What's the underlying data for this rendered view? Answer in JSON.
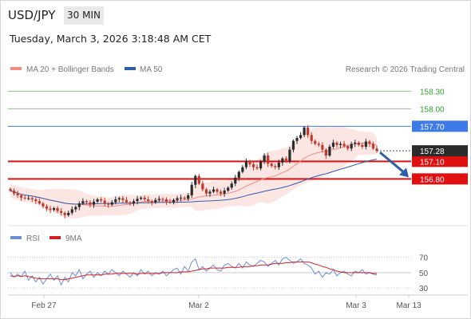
{
  "header": {
    "symbol": "USD/JPY",
    "timeframe": "30 MIN",
    "datetime": "Tuesday, March 3, 2026 3:18:48 AM CET"
  },
  "colors": {
    "ma20_bollinger": "#f28b82",
    "ma50": "#2e5ea8",
    "candle_up": "#2b2b2b",
    "candle_down": "#c0392b",
    "resistance": "#2e9e2e",
    "pivot": "#3d7ae8",
    "support": "#e01010",
    "rsi": "#6a8fd8",
    "rsi_ma": "#d62020",
    "arrow": "#2e5ea8"
  },
  "chart_data": [
    {
      "type": "candlestick",
      "legend": [
        {
          "label": "MA 20 + Bollinger Bands",
          "color": "#f28b82"
        },
        {
          "label": "MA 50",
          "color": "#2e5ea8"
        }
      ],
      "watermark": "Research © 2026 Trading Central",
      "x_ticks": [
        "Feb 27",
        "Mar 2",
        "Mar 3",
        "Mar 13"
      ],
      "ylim": [
        156.0,
        158.55
      ],
      "levels": [
        {
          "value": 158.3,
          "label": "158.30",
          "kind": "resistance"
        },
        {
          "value": 158.0,
          "label": "158.00",
          "kind": "resistance"
        },
        {
          "value": 157.7,
          "label": "157.70",
          "kind": "pivot"
        },
        {
          "value": 157.1,
          "label": "157.10",
          "kind": "support"
        },
        {
          "value": 156.8,
          "label": "156.80",
          "kind": "support"
        }
      ],
      "last_price": {
        "value": 157.28,
        "label": "157.28"
      },
      "closes": [
        156.6,
        156.55,
        156.52,
        156.48,
        156.47,
        156.47,
        156.45,
        156.42,
        156.38,
        156.33,
        156.29,
        156.27,
        156.3,
        156.25,
        156.22,
        156.18,
        156.22,
        156.28,
        156.32,
        156.38,
        156.42,
        156.4,
        156.36,
        156.41,
        156.45,
        156.43,
        156.38,
        156.36,
        156.4,
        156.45,
        156.47,
        156.44,
        156.4,
        156.38,
        156.42,
        156.46,
        156.48,
        156.45,
        156.42,
        156.4,
        156.44,
        156.46,
        156.45,
        156.41,
        156.4,
        156.44,
        156.47,
        156.48,
        156.46,
        156.52,
        156.7,
        156.85,
        156.72,
        156.62,
        156.55,
        156.58,
        156.62,
        156.58,
        156.55,
        156.6,
        156.65,
        156.72,
        156.82,
        156.92,
        157.0,
        157.1,
        157.05,
        157.0,
        156.98,
        157.1,
        157.2,
        157.06,
        157.02,
        157.0,
        157.08,
        157.15,
        157.1,
        157.3,
        157.45,
        157.5,
        157.55,
        157.68,
        157.55,
        157.45,
        157.4,
        157.38,
        157.3,
        157.2,
        157.35,
        157.42,
        157.38,
        157.4,
        157.36,
        157.32,
        157.4,
        157.42,
        157.38,
        157.35,
        157.44,
        157.4,
        157.32,
        157.28
      ]
    },
    {
      "type": "line",
      "legend": [
        {
          "label": "RSI",
          "color": "#6a8fd8"
        },
        {
          "label": "9MA",
          "color": "#d62020"
        }
      ],
      "y_ticks": [
        70,
        50,
        30
      ],
      "ylim": [
        25,
        80
      ],
      "rsi": [
        50,
        44,
        48,
        45,
        52,
        40,
        46,
        38,
        44,
        35,
        42,
        48,
        40,
        46,
        34,
        44,
        38,
        50,
        46,
        54,
        42,
        48,
        52,
        44,
        50,
        46,
        52,
        48,
        54,
        50,
        46,
        52,
        48,
        44,
        50,
        46,
        54,
        48,
        52,
        46,
        50,
        48,
        52,
        46,
        50,
        54,
        56,
        48,
        58,
        52,
        64,
        68,
        54,
        58,
        52,
        56,
        60,
        54,
        52,
        60,
        62,
        58,
        56,
        62,
        56,
        64,
        60,
        58,
        62,
        66,
        64,
        58,
        62,
        66,
        60,
        68,
        70,
        66,
        62,
        64,
        68,
        62,
        60,
        56,
        48,
        52,
        44,
        50,
        48,
        54,
        46,
        50,
        52,
        48,
        46,
        52,
        50,
        54,
        48,
        50,
        48,
        47
      ],
      "ma": [
        46,
        45,
        46,
        45,
        46,
        45,
        44,
        43,
        42,
        42,
        42,
        42,
        42,
        42,
        41,
        41,
        42,
        43,
        44,
        45,
        46,
        47,
        47,
        47,
        47,
        47,
        48,
        48,
        48,
        49,
        49,
        49,
        49,
        49,
        49,
        48,
        49,
        49,
        49,
        49,
        49,
        49,
        50,
        50,
        50,
        50,
        50,
        51,
        51,
        51,
        52,
        53,
        54,
        55,
        55,
        56,
        56,
        56,
        56,
        56,
        57,
        57,
        57,
        57,
        58,
        58,
        58,
        59,
        59,
        60,
        60,
        60,
        61,
        62,
        62,
        62,
        63,
        63,
        64,
        64,
        64,
        64,
        64,
        63,
        61,
        60,
        58,
        57,
        55,
        54,
        52,
        51,
        50,
        50,
        50,
        50,
        50,
        50,
        50,
        50,
        49,
        49
      ]
    }
  ]
}
